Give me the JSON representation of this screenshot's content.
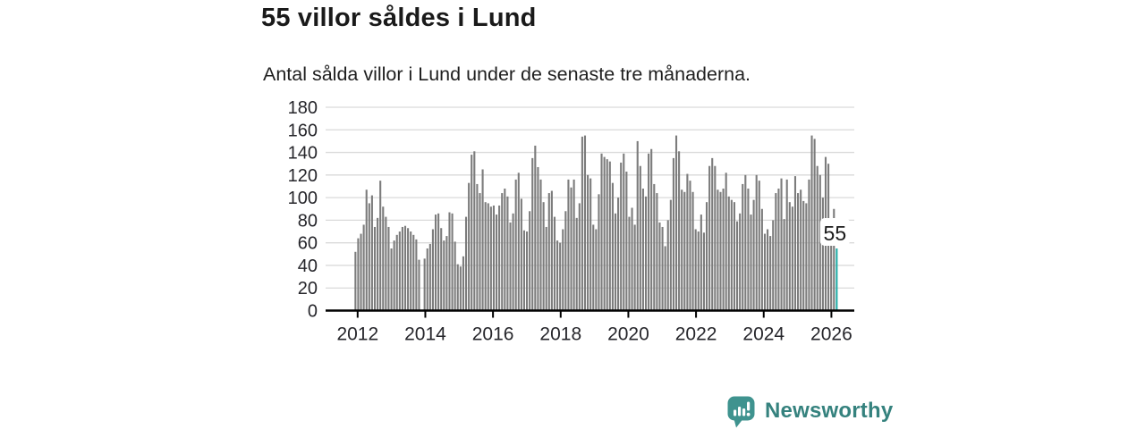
{
  "header": {
    "title": "55 villor såldes i Lund",
    "subtitle": "Antal sålda villor i Lund under de senaste tre månaderna."
  },
  "chart_data": {
    "type": "bar",
    "title": "55 villor såldes i Lund",
    "subtitle": "Antal sålda villor i Lund under de senaste tre månaderna.",
    "ylim": [
      0,
      180
    ],
    "y_ticks": [
      0,
      20,
      40,
      60,
      80,
      100,
      120,
      140,
      160,
      180
    ],
    "x_tick_labels": [
      "2012",
      "2014",
      "2016",
      "2018",
      "2020",
      "2022",
      "2024",
      "2026"
    ],
    "grid": "horizontal",
    "legend": "none",
    "bar_color": "#7c7c7c",
    "highlight_color": "#23ada7",
    "axis_color": "#000000",
    "grid_color": "#dadada",
    "tick_label_color": "#26262b",
    "values": [
      52,
      64,
      68,
      76,
      107,
      95,
      102,
      74,
      82,
      115,
      92,
      83,
      74,
      55,
      62,
      67,
      70,
      74,
      75,
      73,
      70,
      67,
      63,
      45,
      0,
      46,
      55,
      59,
      72,
      85,
      86,
      73,
      62,
      66,
      87,
      86,
      61,
      41,
      39,
      48,
      83,
      113,
      138,
      141,
      112,
      104,
      125,
      96,
      95,
      92,
      93,
      85,
      93,
      104,
      108,
      101,
      78,
      86,
      116,
      122,
      99,
      71,
      70,
      88,
      135,
      146,
      127,
      116,
      96,
      74,
      104,
      106,
      83,
      62,
      60,
      72,
      88,
      116,
      109,
      116,
      82,
      95,
      154,
      155,
      120,
      117,
      76,
      72,
      103,
      139,
      136,
      134,
      132,
      113,
      86,
      100,
      131,
      139,
      123,
      83,
      91,
      76,
      150,
      128,
      108,
      101,
      139,
      143,
      112,
      104,
      78,
      74,
      57,
      80,
      98,
      135,
      155,
      141,
      107,
      105,
      121,
      115,
      105,
      72,
      70,
      85,
      69,
      96,
      128,
      135,
      128,
      107,
      105,
      108,
      122,
      101,
      98,
      96,
      79,
      86,
      112,
      120,
      108,
      85,
      98,
      120,
      115,
      90,
      68,
      72,
      66,
      80,
      104,
      108,
      117,
      81,
      116,
      96,
      92,
      119,
      104,
      107,
      97,
      95,
      116,
      155,
      152,
      128,
      120,
      100,
      136,
      130,
      80,
      90,
      55
    ],
    "highlight_index": 174,
    "annotation": {
      "text": "55",
      "value": 55
    }
  },
  "footer": {
    "brand": "Newsworthy",
    "brand_color": "#35827E",
    "logo_color": "#3F938F",
    "logo_icon": "bar-chart-speech-bubble-icon"
  }
}
